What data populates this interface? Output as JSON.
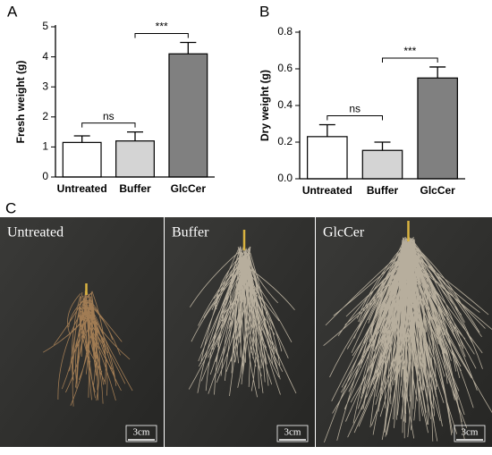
{
  "chart_data": [
    {
      "type": "bar",
      "panel_label": "A",
      "ylabel": "Fresh weight (g)",
      "categories": [
        "Untreated",
        "Buffer",
        "GlcCer"
      ],
      "values": [
        1.15,
        1.2,
        4.1
      ],
      "errors": [
        0.22,
        0.3,
        0.38
      ],
      "colors": [
        "#ffffff",
        "#d4d4d4",
        "#808080"
      ],
      "ylim": [
        0,
        5
      ],
      "yticks": [
        0,
        1,
        2,
        3,
        4,
        5
      ],
      "annotations": [
        "ns",
        "***"
      ]
    },
    {
      "type": "bar",
      "panel_label": "B",
      "ylabel": "Dry weight (g)",
      "categories": [
        "Untreated",
        "Buffer",
        "GlcCer"
      ],
      "values": [
        0.23,
        0.155,
        0.55
      ],
      "errors": [
        0.065,
        0.045,
        0.06
      ],
      "colors": [
        "#ffffff",
        "#d4d4d4",
        "#808080"
      ],
      "ylim": [
        0,
        0.8
      ],
      "yticks": [
        {
          "value": 0,
          "label": "0.0"
        },
        0.2,
        0.4,
        0.6,
        0.8
      ],
      "annotations": [
        "ns",
        "***"
      ]
    }
  ],
  "photos": {
    "panel_label": "C",
    "items": [
      {
        "label": "Untreated",
        "scale": "3cm"
      },
      {
        "label": "Buffer",
        "scale": "3cm"
      },
      {
        "label": "GlcCer",
        "scale": "3cm"
      }
    ]
  }
}
